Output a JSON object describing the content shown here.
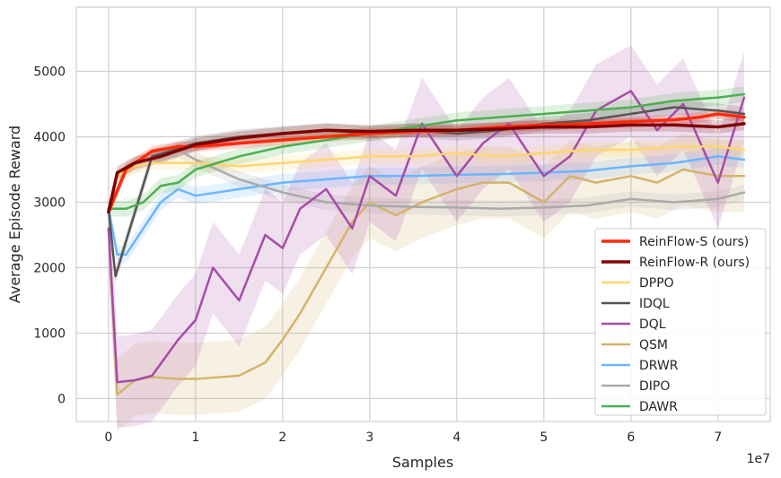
{
  "chart_data": {
    "type": "line",
    "xlabel": "Samples",
    "ylabel": "Average Episode Reward",
    "x_offset_label": "1e7",
    "xlim": [
      -0.37,
      7.6
    ],
    "ylim": [
      -350,
      5980
    ],
    "xticks": [
      0,
      1,
      2,
      3,
      4,
      5,
      6,
      7
    ],
    "yticks": [
      0,
      1000,
      2000,
      3000,
      4000,
      5000
    ],
    "grid": true,
    "legend_position": "lower-right",
    "series": [
      {
        "name": "ReinFlow-S (ours)",
        "color": "#ff2a0a",
        "width": 3.5,
        "x": [
          0,
          0.2,
          0.5,
          0.8,
          1.0,
          1.5,
          2.0,
          2.5,
          3.0,
          3.5,
          4.0,
          4.5,
          5.0,
          5.5,
          6.0,
          6.5,
          6.8,
          7.0,
          7.3
        ],
        "y": [
          2850,
          3500,
          3780,
          3850,
          3850,
          3900,
          3950,
          4000,
          4050,
          4080,
          4100,
          4150,
          4180,
          4200,
          4230,
          4260,
          4300,
          4350,
          4300
        ],
        "band": 80
      },
      {
        "name": "ReinFlow-R (ours)",
        "color": "#7f0000",
        "width": 3.5,
        "x": [
          0,
          0.1,
          0.3,
          0.6,
          1.0,
          1.5,
          2.0,
          2.5,
          3.0,
          3.5,
          4.0,
          4.5,
          5.0,
          5.5,
          6.0,
          6.5,
          7.0,
          7.3
        ],
        "y": [
          2850,
          3450,
          3600,
          3700,
          3880,
          3980,
          4050,
          4100,
          4080,
          4100,
          4100,
          4120,
          4150,
          4150,
          4180,
          4180,
          4150,
          4200
        ],
        "band": 100
      },
      {
        "name": "DPPO",
        "color": "#ffd66e",
        "width": 2.5,
        "x": [
          0,
          0.1,
          0.3,
          0.5,
          1.0,
          1.5,
          2.0,
          2.5,
          3.0,
          3.5,
          4.0,
          4.5,
          5.0,
          5.5,
          6.0,
          6.5,
          7.0,
          7.3
        ],
        "y": [
          2850,
          3400,
          3550,
          3600,
          3600,
          3550,
          3600,
          3650,
          3700,
          3700,
          3750,
          3700,
          3750,
          3800,
          3800,
          3850,
          3850,
          3800
        ],
        "band": 110
      },
      {
        "name": "IDQL",
        "color": "#555555",
        "width": 2.5,
        "x": [
          0,
          0.08,
          0.2,
          0.5,
          1.0,
          1.5,
          2.0,
          2.5,
          3.0,
          3.5,
          4.0,
          4.5,
          5.0,
          5.5,
          6.0,
          6.5,
          7.0,
          7.3
        ],
        "y": [
          2900,
          1870,
          2400,
          3700,
          3900,
          4000,
          4050,
          4100,
          4050,
          4100,
          4050,
          4100,
          4200,
          4250,
          4350,
          4450,
          4400,
          4350
        ],
        "band": 110
      },
      {
        "name": "DQL",
        "color": "#a64ca6",
        "width": 2.5,
        "x": [
          0,
          0.1,
          0.3,
          0.5,
          0.8,
          1.0,
          1.2,
          1.5,
          1.8,
          2.0,
          2.2,
          2.5,
          2.8,
          3.0,
          3.3,
          3.6,
          4.0,
          4.3,
          4.6,
          5.0,
          5.3,
          5.6,
          6.0,
          6.3,
          6.6,
          7.0,
          7.3
        ],
        "y": [
          2600,
          250,
          280,
          350,
          900,
          1200,
          2000,
          1500,
          2500,
          2300,
          2900,
          3200,
          2600,
          3400,
          3100,
          4200,
          3400,
          3900,
          4200,
          3400,
          3700,
          4400,
          4700,
          4100,
          4500,
          3300,
          4600
        ],
        "band": 700
      },
      {
        "name": "QSM",
        "color": "#d4b36a",
        "width": 2.5,
        "x": [
          0,
          0.1,
          0.3,
          0.5,
          0.8,
          1.0,
          1.2,
          1.5,
          1.8,
          2.0,
          2.2,
          2.5,
          2.8,
          3.0,
          3.3,
          3.6,
          4.0,
          4.3,
          4.6,
          5.0,
          5.3,
          5.6,
          6.0,
          6.3,
          6.6,
          7.0,
          7.3
        ],
        "y": [
          2600,
          60,
          280,
          330,
          300,
          300,
          320,
          350,
          550,
          900,
          1300,
          2000,
          2700,
          3000,
          2800,
          3000,
          3200,
          3300,
          3300,
          3000,
          3400,
          3300,
          3400,
          3300,
          3500,
          3400,
          3400
        ],
        "band": 550
      },
      {
        "name": "DRWR",
        "color": "#6bb6ff",
        "width": 2.5,
        "x": [
          0,
          0.1,
          0.2,
          0.4,
          0.6,
          0.8,
          1.0,
          1.5,
          2.0,
          2.5,
          3.0,
          3.5,
          4.0,
          4.5,
          5.0,
          5.5,
          6.0,
          6.5,
          7.0,
          7.3
        ],
        "y": [
          2900,
          2200,
          2200,
          2600,
          3000,
          3200,
          3100,
          3200,
          3300,
          3350,
          3400,
          3400,
          3420,
          3430,
          3450,
          3480,
          3550,
          3600,
          3700,
          3650
        ],
        "band": 130
      },
      {
        "name": "DIPO",
        "color": "#aaaaaa",
        "width": 2.5,
        "x": [
          0,
          0.2,
          0.5,
          0.8,
          1.0,
          1.5,
          2.0,
          2.5,
          3.0,
          3.5,
          4.0,
          4.5,
          5.0,
          5.5,
          6.0,
          6.5,
          7.0,
          7.3
        ],
        "y": [
          2900,
          3500,
          3700,
          3800,
          3650,
          3350,
          3150,
          3000,
          2950,
          2930,
          2920,
          2900,
          2920,
          2950,
          3050,
          3000,
          3050,
          3150
        ],
        "band": 120
      },
      {
        "name": "DAWR",
        "color": "#4caf50",
        "width": 2.5,
        "x": [
          0,
          0.2,
          0.4,
          0.6,
          0.8,
          1.0,
          1.5,
          2.0,
          2.5,
          3.0,
          3.5,
          4.0,
          4.5,
          5.0,
          5.5,
          6.0,
          6.5,
          7.0,
          7.3
        ],
        "y": [
          2900,
          2900,
          3000,
          3250,
          3300,
          3500,
          3700,
          3850,
          3950,
          4050,
          4150,
          4250,
          4300,
          4350,
          4400,
          4450,
          4550,
          4600,
          4650
        ],
        "band": 120
      }
    ]
  }
}
